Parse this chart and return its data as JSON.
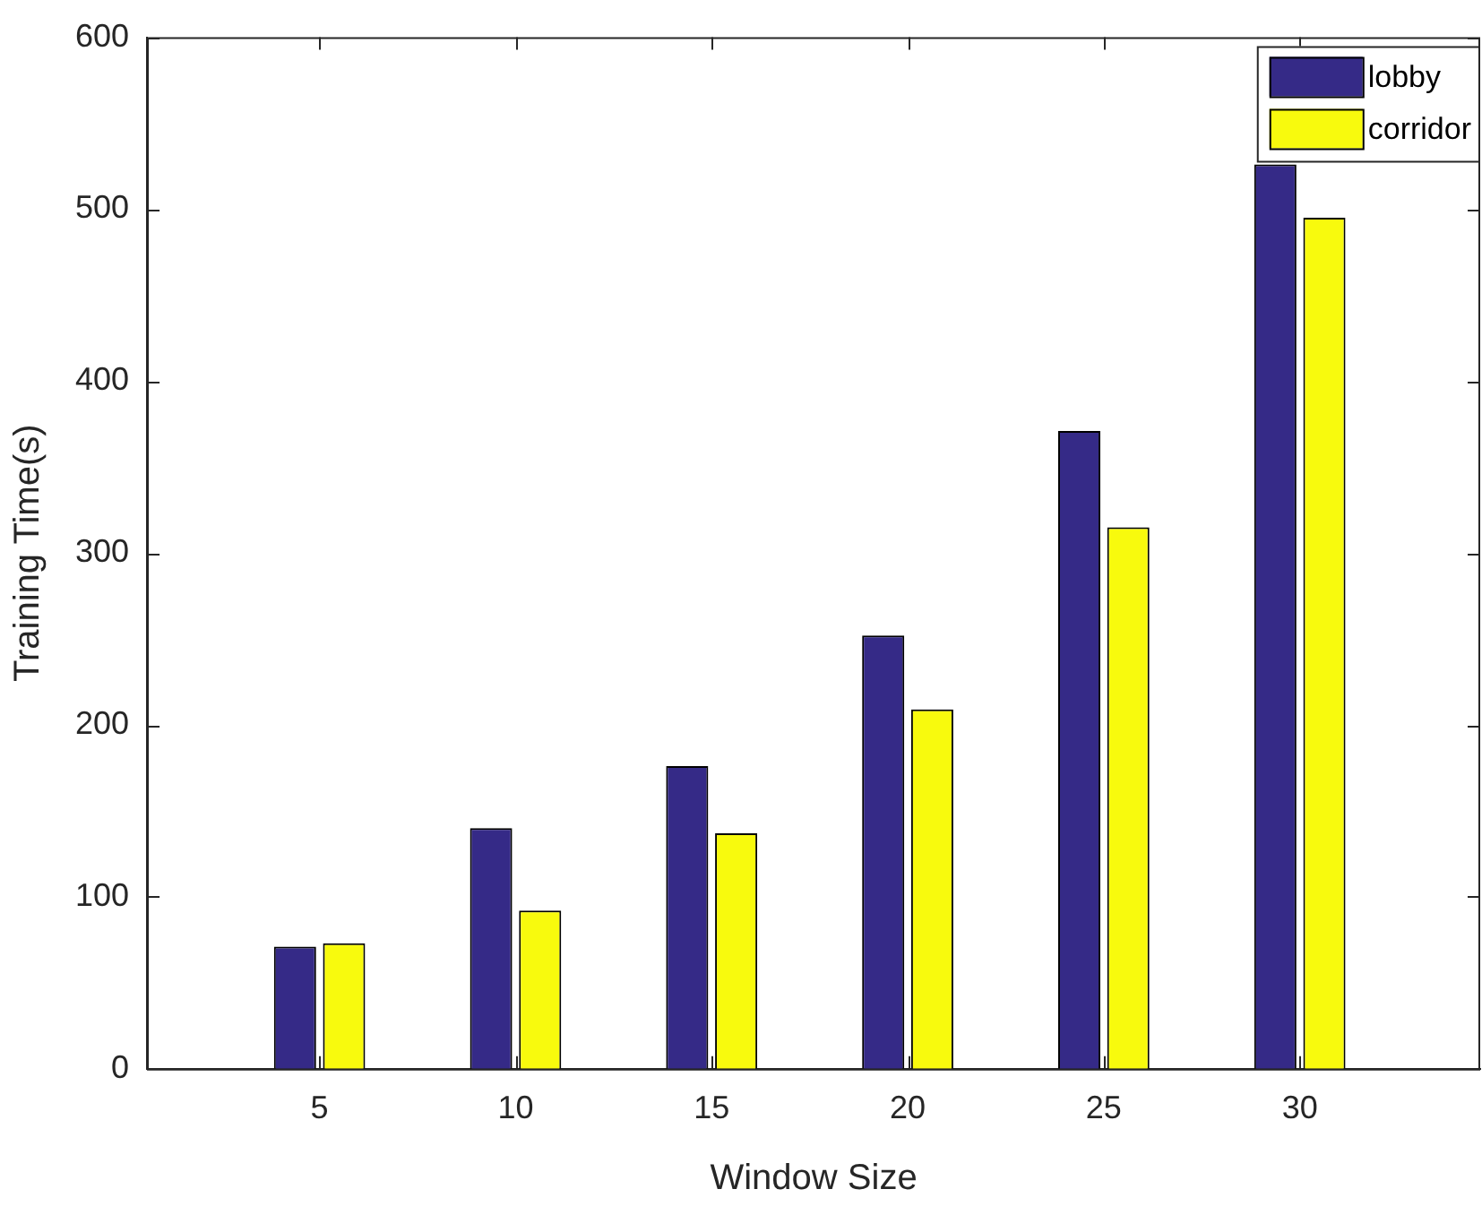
{
  "chart_data": {
    "type": "bar",
    "xlabel": "Window Size",
    "ylabel": "Training Time(s)",
    "x": [
      5,
      10,
      15,
      20,
      25,
      30
    ],
    "xlim": [
      0.6,
      34.6
    ],
    "xticks": [
      5,
      10,
      15,
      20,
      25,
      30
    ],
    "ylim": [
      0,
      600
    ],
    "yticks": [
      0,
      100,
      200,
      300,
      400,
      500,
      600
    ],
    "grid": false,
    "legend": "top right",
    "series": [
      {
        "name": "lobby",
        "color": "#352a87",
        "values": [
          71,
          140,
          176,
          252,
          371,
          526
        ]
      },
      {
        "name": "corridor",
        "color": "#f8fa0d",
        "values": [
          73,
          92,
          137,
          209,
          315,
          495
        ]
      }
    ]
  }
}
